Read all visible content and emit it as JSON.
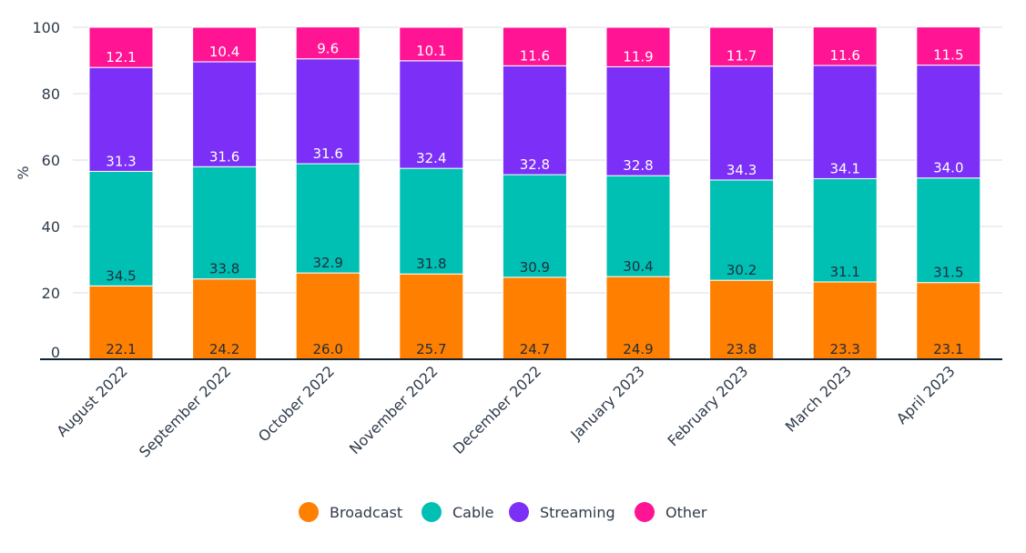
{
  "chart_data": {
    "type": "bar",
    "stacked": true,
    "title": "",
    "xlabel": "",
    "ylabel": "%",
    "ylim": [
      0,
      100
    ],
    "yticks": [
      0,
      20,
      40,
      60,
      80,
      100
    ],
    "grid": true,
    "legend_position": "bottom",
    "categories": [
      "August 2022",
      "September 2022",
      "October 2022",
      "November 2022",
      "December 2022",
      "January 2023",
      "February 2023",
      "March 2023",
      "April 2023"
    ],
    "series": [
      {
        "name": "Broadcast",
        "color": "#ff7f00",
        "label_color": "#1f2d3d",
        "values": [
          22.1,
          24.2,
          26.0,
          25.7,
          24.7,
          24.9,
          23.8,
          23.3,
          23.1
        ],
        "labels": [
          "22.1",
          "24.2",
          "26.0",
          "25.7",
          "24.7",
          "24.9",
          "23.8",
          "23.3",
          "23.1"
        ]
      },
      {
        "name": "Cable",
        "color": "#00bfb3",
        "label_color": "#1f2d3d",
        "values": [
          34.5,
          33.8,
          32.9,
          31.8,
          30.9,
          30.4,
          30.2,
          31.1,
          31.5
        ],
        "labels": [
          "34.5",
          "33.8",
          "32.9",
          "31.8",
          "30.9",
          "30.4",
          "30.2",
          "31.1",
          "31.5"
        ]
      },
      {
        "name": "Streaming",
        "color": "#7b2ff7",
        "label_color": "#ffffff",
        "values": [
          31.3,
          31.6,
          31.6,
          32.4,
          32.8,
          32.8,
          34.3,
          34.1,
          34.0
        ],
        "labels": [
          "31.3",
          "31.6",
          "31.6",
          "32.4",
          "32.8",
          "32.8",
          "34.3",
          "34.1",
          "34.0"
        ]
      },
      {
        "name": "Other",
        "color": "#ff1493",
        "label_color": "#ffffff",
        "values": [
          12.1,
          10.4,
          9.6,
          10.1,
          11.6,
          11.9,
          11.7,
          11.6,
          11.5
        ],
        "labels": [
          "12.1",
          "10.4",
          "9.6",
          "10.1",
          "11.6",
          "11.9",
          "11.7",
          "11.6",
          "11.5"
        ]
      }
    ]
  }
}
